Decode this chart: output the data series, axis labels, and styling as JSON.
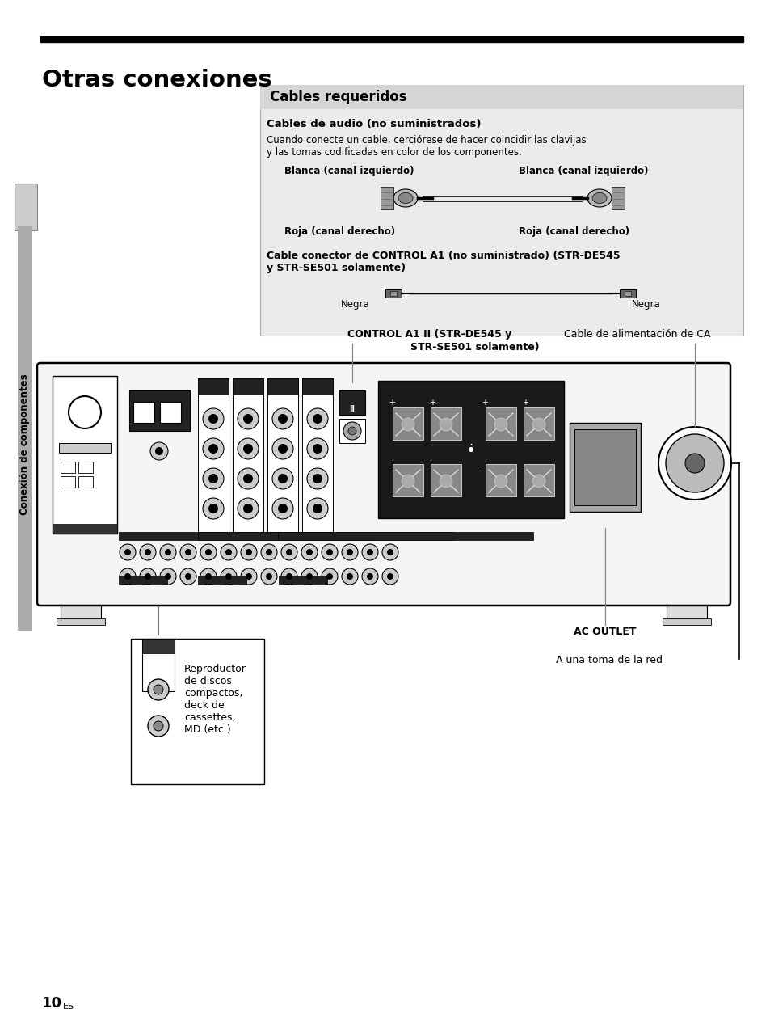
{
  "title": "Otras conexiones",
  "page_number": "10",
  "page_super": "ES",
  "sidebar_text": "Conexión de componentes",
  "cables_requeridos_title": "Cables requeridos",
  "cables_audio_title": "Cables de audio (no suministrados)",
  "cables_audio_desc": "Cuando conecte un cable, cerciórese de hacer coincidir las clavijas\ny las tomas codificadas en color de los componentes.",
  "blanca_left": "Blanca (canal izquierdo)",
  "blanca_right": "Blanca (canal izquierdo)",
  "roja_left": "Roja (canal derecho)",
  "roja_right": "Roja (canal derecho)",
  "control_cable_title": "Cable conector de CONTROL A1 (no suministrado) (STR-DE545\ny STR-SE501 solamente)",
  "negra_left": "Negra",
  "negra_right": "Negra",
  "control_a1_label_line1": "CONTROL A1 II (STR-DE545 y",
  "control_a1_label_line2": "STR-SE501 solamente)",
  "cable_alimentacion_label": "Cable de alimentación de CA",
  "ac_outlet_label": "AC OUTLET",
  "red_label": "A una toma de la red",
  "reproductor_label": "Reproductor\nde discos\ncompactos,\ndeck de\ncassettes,\nMD (etc.)",
  "bg_color": "#ffffff"
}
